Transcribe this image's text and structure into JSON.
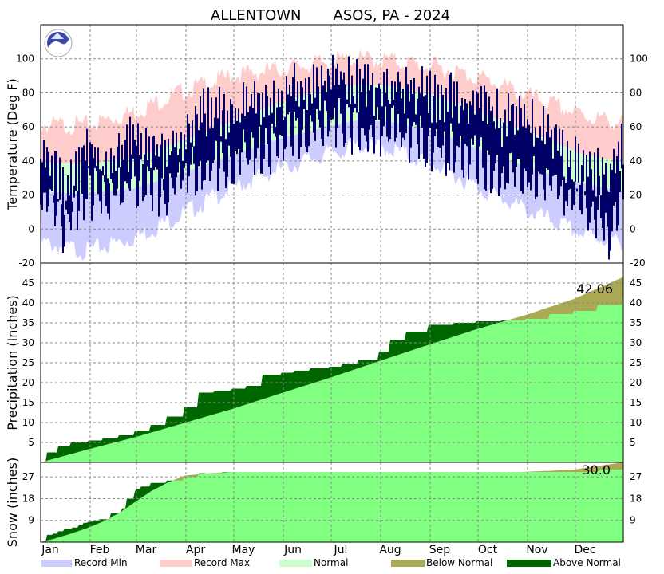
{
  "chart_data": {
    "type": "area",
    "title": "ALLENTOWN       ASOS, PA - 2024",
    "months": [
      "Jan",
      "Feb",
      "Mar",
      "Apr",
      "May",
      "Jun",
      "Jul",
      "Aug",
      "Sep",
      "Oct",
      "Nov",
      "Dec"
    ],
    "legend": [
      {
        "name": "Record Min",
        "color": "#ccccff"
      },
      {
        "name": "Record Max",
        "color": "#ffcccc"
      },
      {
        "name": "Normal",
        "color": "#ccffcc"
      },
      {
        "name": "Below Normal",
        "color": "#aaaa55"
      },
      {
        "name": "Above Normal",
        "color": "#006600"
      }
    ],
    "colors": {
      "record_min": "#ccccff",
      "record_max": "#ffcccc",
      "normal": "#ccffcc",
      "observed": "#000066",
      "precip_normal": "#80ff80",
      "above": "#006600",
      "below": "#aaaa55",
      "grid": "#888888"
    },
    "panels": {
      "temperature": {
        "ylabel": "Temperature (Deg F)",
        "ylim": [
          -20,
          120
        ],
        "ticks": [
          -20,
          0,
          20,
          40,
          60,
          80,
          100
        ],
        "normal_high": {
          "day": [
            1,
            30,
            60,
            90,
            120,
            150,
            180,
            200,
            220,
            250,
            280,
            310,
            340,
            366
          ],
          "value": [
            39,
            38,
            42,
            52,
            63,
            74,
            82,
            85,
            84,
            78,
            67,
            56,
            44,
            39
          ]
        },
        "normal_low": {
          "day": [
            1,
            30,
            60,
            90,
            120,
            150,
            180,
            200,
            220,
            250,
            280,
            310,
            340,
            366
          ],
          "value": [
            22,
            21,
            24,
            33,
            43,
            53,
            60,
            64,
            63,
            57,
            45,
            35,
            27,
            22
          ]
        },
        "record_high": {
          "day": [
            1,
            30,
            60,
            90,
            120,
            150,
            180,
            200,
            220,
            250,
            280,
            310,
            340,
            366
          ],
          "value": [
            64,
            64,
            72,
            84,
            93,
            97,
            101,
            103,
            102,
            98,
            91,
            80,
            70,
            65
          ]
        },
        "record_low": {
          "day": [
            1,
            30,
            60,
            90,
            120,
            150,
            180,
            200,
            220,
            250,
            280,
            310,
            340,
            366
          ],
          "value": [
            -5,
            -10,
            -2,
            12,
            27,
            38,
            47,
            52,
            50,
            40,
            25,
            12,
            0,
            -5
          ]
        },
        "observed_high": {
          "day": [
            1,
            10,
            15,
            22,
            30,
            40,
            50,
            60,
            70,
            80,
            90,
            100,
            110,
            120,
            130,
            140,
            150,
            160,
            170,
            180,
            190,
            200,
            210,
            220,
            230,
            240,
            250,
            260,
            270,
            280,
            290,
            300,
            310,
            320,
            330,
            340,
            350,
            357,
            366
          ],
          "value": [
            48,
            42,
            30,
            38,
            55,
            45,
            50,
            62,
            58,
            52,
            60,
            75,
            78,
            70,
            82,
            76,
            85,
            90,
            92,
            94,
            96,
            92,
            90,
            94,
            88,
            90,
            84,
            86,
            82,
            80,
            72,
            74,
            68,
            62,
            50,
            44,
            42,
            40,
            58
          ]
        },
        "observed_low": {
          "day": [
            1,
            10,
            15,
            22,
            30,
            40,
            50,
            60,
            70,
            80,
            90,
            100,
            110,
            120,
            130,
            140,
            150,
            160,
            170,
            180,
            190,
            200,
            210,
            220,
            230,
            240,
            250,
            260,
            270,
            280,
            290,
            300,
            310,
            320,
            330,
            340,
            350,
            357,
            366
          ],
          "value": [
            28,
            22,
            8,
            18,
            30,
            26,
            30,
            34,
            32,
            28,
            38,
            44,
            46,
            48,
            56,
            54,
            58,
            64,
            66,
            68,
            70,
            66,
            64,
            68,
            62,
            60,
            56,
            54,
            52,
            44,
            40,
            42,
            38,
            34,
            26,
            22,
            18,
            2,
            32
          ]
        }
      },
      "precipitation": {
        "ylabel": "Precipitation (Inches)",
        "ylim": [
          0,
          50
        ],
        "ticks": [
          5,
          10,
          15,
          20,
          25,
          30,
          35,
          40,
          45
        ],
        "total_label": "42.06",
        "normal_cumulative": {
          "day": [
            1,
            31,
            60,
            91,
            121,
            152,
            182,
            213,
            244,
            274,
            305,
            335,
            366
          ],
          "value": [
            0,
            3.3,
            6.3,
            9.9,
            13.4,
            17.4,
            21.2,
            25.4,
            29.5,
            33.4,
            37.0,
            41.0,
            46.5
          ]
        },
        "observed_cumulative": {
          "day": [
            1,
            5,
            12,
            20,
            31,
            40,
            50,
            60,
            70,
            80,
            91,
            100,
            110,
            121,
            130,
            140,
            152,
            160,
            170,
            182,
            190,
            200,
            213,
            220,
            230,
            244,
            260,
            274,
            290,
            305,
            320,
            335,
            350,
            366
          ],
          "value": [
            0,
            2.5,
            4.0,
            5.0,
            5.5,
            6.0,
            6.8,
            8.0,
            9.4,
            11.5,
            13.8,
            17.5,
            18.0,
            18.5,
            19.2,
            22.0,
            22.5,
            23.0,
            23.6,
            24.0,
            24.6,
            25.7,
            27.8,
            30.8,
            32.8,
            34.5,
            35.0,
            35.4,
            35.6,
            36.0,
            37.2,
            38.0,
            39.5,
            42.06
          ]
        }
      },
      "snow": {
        "ylabel": "Snow (inches)",
        "ylim": [
          0,
          33
        ],
        "ticks": [
          9,
          18,
          27
        ],
        "total_label": "30.0",
        "normal_cumulative": {
          "day": [
            1,
            10,
            20,
            31,
            40,
            50,
            60,
            70,
            80,
            91,
            105,
            121,
            300,
            320,
            335,
            350,
            366
          ],
          "value": [
            0,
            1.5,
            3.5,
            6.0,
            8.5,
            12.0,
            16.5,
            21.0,
            24.5,
            27.5,
            28.5,
            29.0,
            29.0,
            29.5,
            30.0,
            31.5,
            33.0
          ]
        },
        "observed_cumulative": {
          "day": [
            1,
            5,
            9,
            12,
            16,
            21,
            25,
            28,
            31,
            35,
            38,
            45,
            52,
            55,
            60,
            61,
            64,
            70,
            80,
            91,
            100,
            115,
            121,
            300,
            320,
            335,
            340,
            345,
            350,
            351,
            353,
            366
          ],
          "value": [
            0,
            3.0,
            3.5,
            4.5,
            5.5,
            6.0,
            7.2,
            8.0,
            8.5,
            9.0,
            9.5,
            12.0,
            14.0,
            18.0,
            21.0,
            22.0,
            23.0,
            24.5,
            25.5,
            27.0,
            28.5,
            29.0,
            29.0,
            29.0,
            29.0,
            29.0,
            29.0,
            29.0,
            29.0,
            30.0,
            30.0,
            30.0
          ]
        }
      }
    }
  }
}
